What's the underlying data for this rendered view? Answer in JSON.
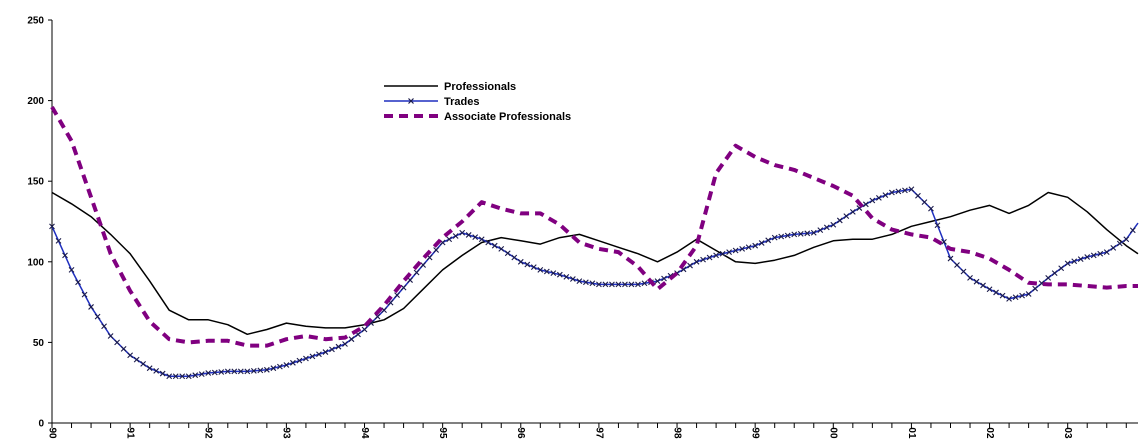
{
  "chart_data": {
    "type": "line",
    "title": "",
    "xlabel": "",
    "ylabel": "",
    "ylim": [
      0,
      250
    ],
    "yticks": [
      0,
      50,
      100,
      150,
      200,
      250
    ],
    "x_tick_labels": [
      "90",
      "91",
      "92",
      "93",
      "94",
      "95",
      "96",
      "97",
      "98",
      "99",
      "00",
      "01",
      "02",
      "03"
    ],
    "x_start": 1990.0,
    "x_end": 2003.9,
    "grid": false,
    "legend_position": "upper-center",
    "series": [
      {
        "name": "Professionals",
        "color": "#000000",
        "style": "solid",
        "x": [
          1990.0,
          1990.25,
          1990.5,
          1990.75,
          1991.0,
          1991.25,
          1991.5,
          1991.75,
          1992.0,
          1992.25,
          1992.5,
          1992.75,
          1993.0,
          1993.25,
          1993.5,
          1993.75,
          1994.0,
          1994.25,
          1994.5,
          1994.75,
          1995.0,
          1995.25,
          1995.5,
          1995.75,
          1996.0,
          1996.25,
          1996.5,
          1996.75,
          1997.0,
          1997.25,
          1997.5,
          1997.75,
          1998.0,
          1998.25,
          1998.5,
          1998.75,
          1999.0,
          1999.25,
          1999.5,
          1999.75,
          2000.0,
          2000.25,
          2000.5,
          2000.75,
          2001.0,
          2001.25,
          2001.5,
          2001.75,
          2002.0,
          2002.25,
          2002.5,
          2002.75,
          2003.0,
          2003.25,
          2003.5,
          2003.75,
          2003.9
        ],
        "values": [
          143,
          136,
          128,
          117,
          105,
          88,
          70,
          64,
          64,
          61,
          55,
          58,
          62,
          60,
          59,
          59,
          61,
          64,
          71,
          83,
          95,
          104,
          112,
          115,
          113,
          111,
          115,
          117,
          113,
          109,
          105,
          100,
          106,
          114,
          107,
          100,
          99,
          101,
          104,
          109,
          113,
          114,
          114,
          117,
          122,
          125,
          128,
          132,
          135,
          130,
          135,
          143,
          140,
          131,
          120,
          110,
          105
        ]
      },
      {
        "name": "Trades",
        "color": "#1f2fbf",
        "style": "solid-x-markers",
        "x": [
          1990.0,
          1990.25,
          1990.5,
          1990.75,
          1991.0,
          1991.25,
          1991.5,
          1991.75,
          1992.0,
          1992.25,
          1992.5,
          1992.75,
          1993.0,
          1993.25,
          1993.5,
          1993.75,
          1994.0,
          1994.25,
          1994.5,
          1994.75,
          1995.0,
          1995.25,
          1995.5,
          1995.75,
          1996.0,
          1996.25,
          1996.5,
          1996.75,
          1997.0,
          1997.25,
          1997.5,
          1997.75,
          1998.0,
          1998.25,
          1998.5,
          1998.75,
          1999.0,
          1999.25,
          1999.5,
          1999.75,
          2000.0,
          2000.25,
          2000.5,
          2000.75,
          2001.0,
          2001.25,
          2001.5,
          2001.75,
          2002.0,
          2002.25,
          2002.5,
          2002.75,
          2003.0,
          2003.25,
          2003.5,
          2003.75,
          2003.9
        ],
        "values": [
          122,
          95,
          72,
          54,
          42,
          34,
          29,
          29,
          31,
          32,
          32,
          33,
          36,
          40,
          44,
          49,
          58,
          70,
          84,
          98,
          112,
          118,
          114,
          108,
          100,
          95,
          92,
          88,
          86,
          86,
          86,
          88,
          93,
          100,
          104,
          107,
          110,
          115,
          117,
          118,
          123,
          131,
          138,
          143,
          145,
          133,
          102,
          90,
          83,
          77,
          80,
          90,
          99,
          103,
          106,
          114,
          124
        ]
      },
      {
        "name": "Associate Professionals",
        "color": "#800080",
        "style": "dashed",
        "x": [
          1990.0,
          1990.25,
          1990.5,
          1990.75,
          1991.0,
          1991.25,
          1991.5,
          1991.75,
          1992.0,
          1992.25,
          1992.5,
          1992.75,
          1993.0,
          1993.25,
          1993.5,
          1993.75,
          1994.0,
          1994.25,
          1994.5,
          1994.75,
          1995.0,
          1995.25,
          1995.5,
          1995.75,
          1996.0,
          1996.25,
          1996.5,
          1996.75,
          1997.0,
          1997.25,
          1997.5,
          1997.75,
          1998.0,
          1998.25,
          1998.5,
          1998.75,
          1999.0,
          1999.25,
          1999.5,
          1999.75,
          2000.0,
          2000.25,
          2000.5,
          2000.75,
          2001.0,
          2001.25,
          2001.5,
          2001.75,
          2002.0,
          2002.25,
          2002.5,
          2002.75,
          2003.0,
          2003.25,
          2003.5,
          2003.75,
          2003.9
        ],
        "values": [
          196,
          175,
          140,
          105,
          82,
          63,
          52,
          50,
          51,
          51,
          48,
          48,
          52,
          54,
          52,
          53,
          60,
          73,
          88,
          102,
          115,
          125,
          137,
          133,
          130,
          130,
          123,
          112,
          108,
          106,
          97,
          83,
          93,
          110,
          155,
          172,
          165,
          160,
          157,
          152,
          147,
          141,
          127,
          120,
          117,
          115,
          108,
          106,
          102,
          95,
          87,
          86,
          86,
          85,
          84,
          85,
          85
        ]
      }
    ]
  }
}
